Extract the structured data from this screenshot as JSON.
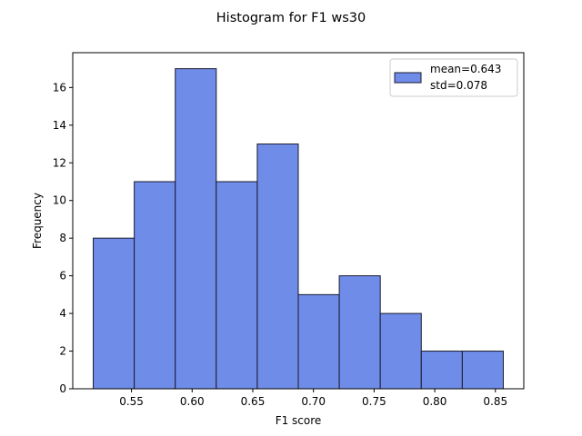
{
  "chart_data": {
    "type": "bar",
    "subtype": "histogram",
    "title": "Histogram for F1 ws30",
    "xlabel": "F1 score",
    "ylabel": "Frequency",
    "bin_edges": [
      0.5185,
      0.5523,
      0.5861,
      0.6199,
      0.6537,
      0.6875,
      0.7213,
      0.7551,
      0.7889,
      0.8227,
      0.8565
    ],
    "values": [
      8,
      11,
      17,
      11,
      13,
      5,
      6,
      4,
      2,
      2
    ],
    "xlim": [
      0.5016,
      0.8734
    ],
    "ylim": [
      0,
      17.85
    ],
    "xticks": [
      0.55,
      0.6,
      0.65,
      0.7,
      0.75,
      0.8,
      0.85
    ],
    "xtick_labels": [
      "0.55",
      "0.60",
      "0.65",
      "0.70",
      "0.75",
      "0.80",
      "0.85"
    ],
    "yticks": [
      0,
      2,
      4,
      6,
      8,
      10,
      12,
      14,
      16
    ],
    "ytick_labels": [
      "0",
      "2",
      "4",
      "6",
      "8",
      "10",
      "12",
      "14",
      "16"
    ],
    "grid": false,
    "legend": {
      "placement": "upper-right",
      "entries": [
        "mean=0.643\nstd=0.078"
      ],
      "lines": [
        "mean=0.643",
        "std=0.078"
      ]
    },
    "colors": {
      "bar_fill": "#6f8ce9",
      "bar_edge": "#1a1a2e"
    }
  }
}
